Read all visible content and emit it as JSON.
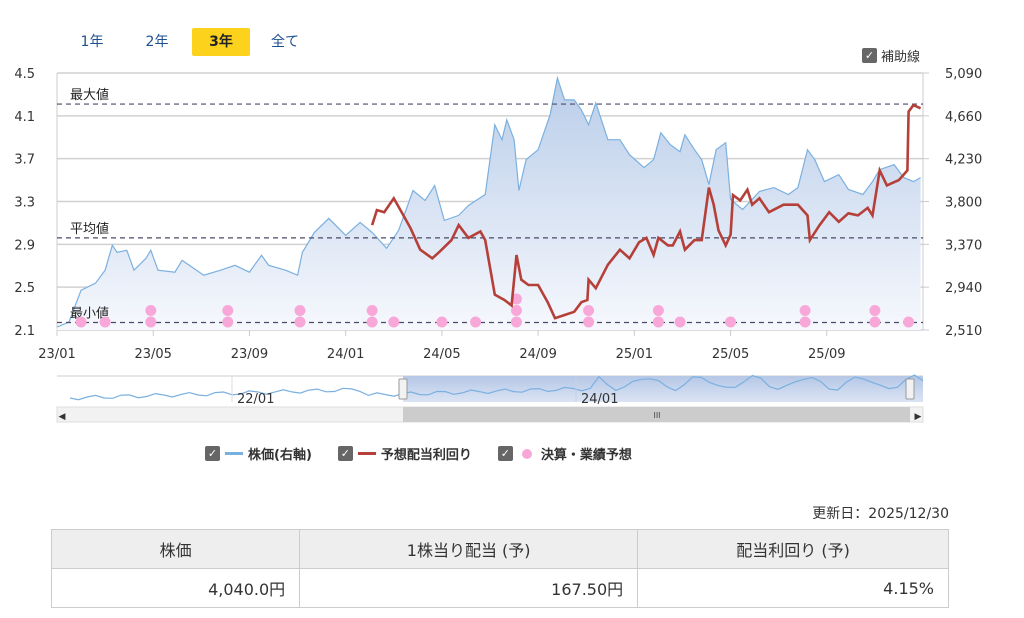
{
  "range_buttons": [
    {
      "label": "1年",
      "active": false
    },
    {
      "label": "2年",
      "active": false
    },
    {
      "label": "3年",
      "active": true
    },
    {
      "label": "全て",
      "active": false
    }
  ],
  "aux_lines_label": "補助線",
  "chart_data": {
    "type": "line",
    "x_unit": "months since 23/01",
    "x_ticks": [
      {
        "m": 0,
        "label": "23/01"
      },
      {
        "m": 4,
        "label": "23/05"
      },
      {
        "m": 8,
        "label": "23/09"
      },
      {
        "m": 12,
        "label": "24/01"
      },
      {
        "m": 16,
        "label": "24/05"
      },
      {
        "m": 20,
        "label": "24/09"
      },
      {
        "m": 24,
        "label": "25/01"
      },
      {
        "m": 28,
        "label": "25/05"
      },
      {
        "m": 32,
        "label": "25/09"
      }
    ],
    "xlim": [
      0,
      36
    ],
    "left_axis": {
      "ylim": [
        2.1,
        4.5
      ],
      "ticks": [
        "2.1",
        "2.5",
        "2.9",
        "3.3",
        "3.7",
        "4.1",
        "4.5"
      ]
    },
    "right_axis": {
      "ylim": [
        2510,
        5090
      ],
      "ticks": [
        "2,510",
        "2,940",
        "3,370",
        "3,800",
        "4,230",
        "4,660",
        "5,090"
      ]
    },
    "ref_lines": [
      {
        "label": "最大値",
        "value": 4.21
      },
      {
        "label": "平均値",
        "value": 2.96
      },
      {
        "label": "最小値",
        "value": 2.17
      }
    ],
    "series": [
      {
        "name": "株価(右軸)",
        "axis": "right",
        "color": "#7ab0e0",
        "points": [
          [
            0,
            2540
          ],
          [
            0.5,
            2590
          ],
          [
            1,
            2910
          ],
          [
            1.6,
            2980
          ],
          [
            2,
            3110
          ],
          [
            2.3,
            3360
          ],
          [
            2.5,
            3290
          ],
          [
            2.9,
            3310
          ],
          [
            3.2,
            3110
          ],
          [
            3.7,
            3230
          ],
          [
            3.9,
            3310
          ],
          [
            4.2,
            3110
          ],
          [
            4.9,
            3090
          ],
          [
            5.2,
            3210
          ],
          [
            5.5,
            3160
          ],
          [
            6.1,
            3060
          ],
          [
            6.8,
            3110
          ],
          [
            7.4,
            3160
          ],
          [
            8,
            3090
          ],
          [
            8.5,
            3260
          ],
          [
            8.8,
            3160
          ],
          [
            9.5,
            3110
          ],
          [
            10,
            3060
          ],
          [
            10.2,
            3290
          ],
          [
            10.7,
            3490
          ],
          [
            11.3,
            3630
          ],
          [
            12,
            3460
          ],
          [
            12.6,
            3590
          ],
          [
            13.1,
            3490
          ],
          [
            13.7,
            3330
          ],
          [
            14.2,
            3510
          ],
          [
            14.8,
            3910
          ],
          [
            15.3,
            3810
          ],
          [
            15.7,
            3960
          ],
          [
            16.1,
            3610
          ],
          [
            16.7,
            3660
          ],
          [
            17.1,
            3760
          ],
          [
            17.8,
            3870
          ],
          [
            18.2,
            4570
          ],
          [
            18.5,
            4420
          ],
          [
            18.7,
            4620
          ],
          [
            19,
            4420
          ],
          [
            19.2,
            3910
          ],
          [
            19.5,
            4220
          ],
          [
            20,
            4320
          ],
          [
            20.5,
            4670
          ],
          [
            20.8,
            5040
          ],
          [
            21.1,
            4820
          ],
          [
            21.5,
            4820
          ],
          [
            21.8,
            4720
          ],
          [
            22.1,
            4570
          ],
          [
            22.4,
            4790
          ],
          [
            22.9,
            4420
          ],
          [
            23.4,
            4420
          ],
          [
            23.8,
            4270
          ],
          [
            24.4,
            4140
          ],
          [
            24.8,
            4220
          ],
          [
            25.1,
            4490
          ],
          [
            25.5,
            4370
          ],
          [
            25.9,
            4300
          ],
          [
            26.1,
            4470
          ],
          [
            26.5,
            4320
          ],
          [
            26.8,
            4220
          ],
          [
            27.1,
            3970
          ],
          [
            27.4,
            4320
          ],
          [
            27.8,
            4390
          ],
          [
            28,
            3820
          ],
          [
            28.5,
            3720
          ],
          [
            29.2,
            3900
          ],
          [
            29.8,
            3940
          ],
          [
            30.4,
            3870
          ],
          [
            30.8,
            3940
          ],
          [
            31.2,
            4320
          ],
          [
            31.5,
            4220
          ],
          [
            31.9,
            4000
          ],
          [
            32.5,
            4070
          ],
          [
            32.9,
            3920
          ],
          [
            33.5,
            3870
          ],
          [
            33.9,
            4000
          ],
          [
            34.2,
            4120
          ],
          [
            34.8,
            4170
          ],
          [
            35.2,
            4040
          ],
          [
            35.6,
            4000
          ],
          [
            35.9,
            4040
          ]
        ]
      },
      {
        "name": "予想配当利回り",
        "axis": "left",
        "color": "#b5403a",
        "points": [
          [
            13.1,
            3.08
          ],
          [
            13.3,
            3.22
          ],
          [
            13.6,
            3.2
          ],
          [
            14,
            3.33
          ],
          [
            14.4,
            3.17
          ],
          [
            14.7,
            3.05
          ],
          [
            15.1,
            2.85
          ],
          [
            15.6,
            2.77
          ],
          [
            15.9,
            2.83
          ],
          [
            16.4,
            2.94
          ],
          [
            16.7,
            3.08
          ],
          [
            17.1,
            2.96
          ],
          [
            17.6,
            3.02
          ],
          [
            17.8,
            2.94
          ],
          [
            18.2,
            2.43
          ],
          [
            18.6,
            2.38
          ],
          [
            18.9,
            2.33
          ],
          [
            19.1,
            2.8
          ],
          [
            19.3,
            2.57
          ],
          [
            19.6,
            2.52
          ],
          [
            20,
            2.52
          ],
          [
            20.4,
            2.36
          ],
          [
            20.7,
            2.21
          ],
          [
            21.1,
            2.24
          ],
          [
            21.5,
            2.27
          ],
          [
            21.8,
            2.36
          ],
          [
            22.05,
            2.38
          ],
          [
            22.1,
            2.57
          ],
          [
            22.4,
            2.49
          ],
          [
            22.9,
            2.71
          ],
          [
            23.4,
            2.85
          ],
          [
            23.8,
            2.77
          ],
          [
            24.2,
            2.92
          ],
          [
            24.5,
            2.96
          ],
          [
            24.8,
            2.8
          ],
          [
            25,
            2.96
          ],
          [
            25.4,
            2.89
          ],
          [
            25.6,
            2.89
          ],
          [
            25.9,
            3.02
          ],
          [
            26.1,
            2.85
          ],
          [
            26.5,
            2.94
          ],
          [
            26.8,
            2.94
          ],
          [
            27.1,
            3.43
          ],
          [
            27.3,
            3.27
          ],
          [
            27.5,
            3.03
          ],
          [
            27.8,
            2.89
          ],
          [
            28,
            2.99
          ],
          [
            28.1,
            3.36
          ],
          [
            28.4,
            3.31
          ],
          [
            28.7,
            3.41
          ],
          [
            28.9,
            3.27
          ],
          [
            29.2,
            3.33
          ],
          [
            29.6,
            3.2
          ],
          [
            30.2,
            3.27
          ],
          [
            30.8,
            3.27
          ],
          [
            31.2,
            3.17
          ],
          [
            31.3,
            2.94
          ],
          [
            31.7,
            3.08
          ],
          [
            32.1,
            3.2
          ],
          [
            32.5,
            3.11
          ],
          [
            32.9,
            3.19
          ],
          [
            33.3,
            3.17
          ],
          [
            33.7,
            3.24
          ],
          [
            33.9,
            3.17
          ],
          [
            34.2,
            3.59
          ],
          [
            34.5,
            3.45
          ],
          [
            35,
            3.5
          ],
          [
            35.35,
            3.59
          ],
          [
            35.4,
            4.14
          ],
          [
            35.6,
            4.2
          ],
          [
            35.9,
            4.17
          ]
        ]
      }
    ],
    "events": {
      "name": "決算・業績予想",
      "color": "#f8a8d8",
      "points": [
        [
          1,
          1
        ],
        [
          2,
          1
        ],
        [
          3.9,
          2
        ],
        [
          7.1,
          2
        ],
        [
          10.1,
          2
        ],
        [
          13.1,
          2
        ],
        [
          14,
          1
        ],
        [
          16,
          1
        ],
        [
          17.4,
          1
        ],
        [
          19.1,
          3
        ],
        [
          22.1,
          2
        ],
        [
          25,
          2
        ],
        [
          25.9,
          1
        ],
        [
          28,
          1
        ],
        [
          31.1,
          2
        ],
        [
          34.0,
          2
        ],
        [
          35.4,
          1
        ]
      ]
    },
    "navigator": {
      "labels": [
        "22/01",
        "24/01"
      ]
    }
  },
  "legend": [
    {
      "label": "株価(右軸)",
      "color": "#7ab0e0",
      "kind": "line"
    },
    {
      "label": "予想配当利回り",
      "color": "#b5403a",
      "kind": "line"
    },
    {
      "label": "決算・業績予想",
      "color": "#f8a8d8",
      "kind": "dot"
    }
  ],
  "updated": "更新日：2025/12/30",
  "summary": {
    "headers": [
      "株価",
      "1株当り配当 (予)",
      "配当利回り (予)"
    ],
    "values": [
      "4,040.0円",
      "167.50円",
      "4.15%"
    ]
  }
}
